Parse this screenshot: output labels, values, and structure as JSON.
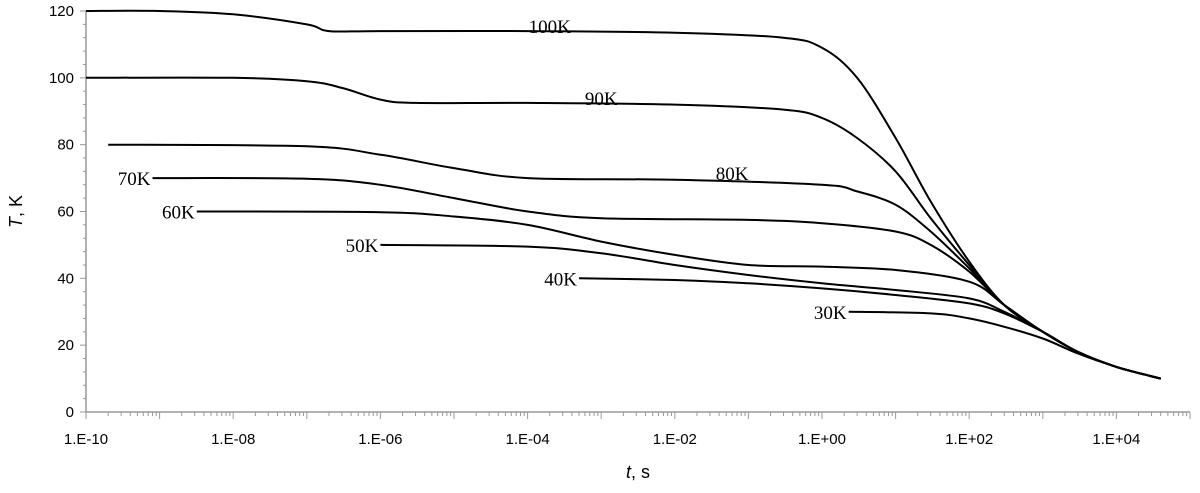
{
  "chart_data": {
    "type": "line",
    "title": "",
    "xlabel_var": "t",
    "xlabel_unit": ", s",
    "ylabel_var": "T",
    "ylabel_unit": ", K",
    "x_scale": "log",
    "xlim": [
      1e-10,
      100000.0
    ],
    "ylim": [
      0,
      120
    ],
    "grid": false,
    "legend": "none",
    "x_tick_labels": [
      {
        "value": 1e-10,
        "label": "1.E-10"
      },
      {
        "value": 1e-08,
        "label": "1.E-08"
      },
      {
        "value": 1e-06,
        "label": "1.E-06"
      },
      {
        "value": 0.0001,
        "label": "1.E-04"
      },
      {
        "value": 0.01,
        "label": "1.E-02"
      },
      {
        "value": 1,
        "label": "1.E+00"
      },
      {
        "value": 100,
        "label": "1.E+02"
      },
      {
        "value": 10000,
        "label": "1.E+04"
      }
    ],
    "y_tick_labels": [
      {
        "value": 0,
        "label": "0"
      },
      {
        "value": 20,
        "label": "20"
      },
      {
        "value": 40,
        "label": "40"
      },
      {
        "value": 60,
        "label": "60"
      },
      {
        "value": 80,
        "label": "80"
      },
      {
        "value": 100,
        "label": "100"
      },
      {
        "value": 120,
        "label": "120"
      }
    ],
    "series": [
      {
        "name": "100K",
        "label_at": [
          0.0002,
          115.5
        ],
        "label_anchor": "middle",
        "points": [
          [
            1e-10,
            120
          ],
          [
            1e-09,
            120
          ],
          [
            1e-08,
            119
          ],
          [
            1e-07,
            116
          ],
          [
            2e-07,
            114
          ],
          [
            1e-06,
            114
          ],
          [
            0.0001,
            114
          ],
          [
            0.01,
            113.5
          ],
          [
            0.3,
            112
          ],
          [
            1,
            109
          ],
          [
            3,
            100
          ],
          [
            10,
            82
          ],
          [
            30,
            63
          ],
          [
            100,
            45
          ],
          [
            300,
            32
          ],
          [
            1000,
            24
          ],
          [
            3000,
            18
          ],
          [
            10000,
            13.5
          ],
          [
            40000,
            10
          ]
        ]
      },
      {
        "name": "90K",
        "label_at": [
          0.001,
          94
        ],
        "label_anchor": "middle",
        "points": [
          [
            1e-10,
            100
          ],
          [
            1e-08,
            100
          ],
          [
            1e-07,
            99
          ],
          [
            3e-07,
            97
          ],
          [
            1e-06,
            93.5
          ],
          [
            3e-06,
            92.5
          ],
          [
            0.0001,
            92.5
          ],
          [
            0.01,
            92
          ],
          [
            0.3,
            90.5
          ],
          [
            1,
            88
          ],
          [
            3,
            82
          ],
          [
            10,
            72
          ],
          [
            30,
            58
          ],
          [
            100,
            44
          ],
          [
            300,
            32
          ],
          [
            1000,
            24
          ],
          [
            3000,
            18
          ],
          [
            10000,
            13.5
          ],
          [
            40000,
            10
          ]
        ]
      },
      {
        "name": "80K",
        "label_at": [
          0.06,
          71.5
        ],
        "label_anchor": "middle",
        "points": [
          [
            2e-10,
            80
          ],
          [
            1e-07,
            79.5
          ],
          [
            1e-06,
            77
          ],
          [
            1e-05,
            73
          ],
          [
            0.0001,
            70
          ],
          [
            0.01,
            69.5
          ],
          [
            1,
            68
          ],
          [
            3,
            66
          ],
          [
            10,
            62
          ],
          [
            30,
            54
          ],
          [
            100,
            43
          ],
          [
            300,
            32
          ],
          [
            1000,
            24
          ],
          [
            3000,
            18
          ],
          [
            10000,
            13.5
          ],
          [
            40000,
            10
          ]
        ]
      },
      {
        "name": "70K",
        "label_at": [
          8e-10,
          70
        ],
        "label_anchor": "end",
        "points": [
          [
            8e-10,
            70
          ],
          [
            1e-07,
            69.8
          ],
          [
            1e-06,
            68
          ],
          [
            1e-05,
            64
          ],
          [
            0.0001,
            60
          ],
          [
            0.001,
            58
          ],
          [
            0.1,
            57.5
          ],
          [
            1,
            56.5
          ],
          [
            10,
            54
          ],
          [
            30,
            50
          ],
          [
            100,
            42
          ],
          [
            300,
            32
          ],
          [
            1000,
            24
          ],
          [
            3000,
            18
          ],
          [
            10000,
            13.5
          ],
          [
            40000,
            10
          ]
        ]
      },
      {
        "name": "60K",
        "label_at": [
          3.2e-09,
          60
        ],
        "label_anchor": "end",
        "points": [
          [
            3.2e-09,
            60
          ],
          [
            1e-06,
            59.8
          ],
          [
            1e-05,
            58.5
          ],
          [
            0.0001,
            56
          ],
          [
            0.001,
            51
          ],
          [
            0.01,
            47
          ],
          [
            0.1,
            44
          ],
          [
            1,
            43.5
          ],
          [
            10,
            42.5
          ],
          [
            100,
            39
          ],
          [
            300,
            32
          ],
          [
            1000,
            24
          ],
          [
            3000,
            18
          ],
          [
            10000,
            13.5
          ],
          [
            40000,
            10
          ]
        ]
      },
      {
        "name": "50K",
        "label_at": [
          1e-06,
          50
        ],
        "label_anchor": "end",
        "points": [
          [
            1e-06,
            50
          ],
          [
            0.0001,
            49.5
          ],
          [
            0.001,
            47.5
          ],
          [
            0.01,
            44
          ],
          [
            0.1,
            41
          ],
          [
            1,
            38.5
          ],
          [
            10,
            36.5
          ],
          [
            100,
            34
          ],
          [
            300,
            30
          ],
          [
            1000,
            24
          ],
          [
            3000,
            18
          ],
          [
            10000,
            13.5
          ],
          [
            40000,
            10
          ]
        ]
      },
      {
        "name": "40K",
        "label_at": [
          0.0005,
          40
        ],
        "label_anchor": "end",
        "points": [
          [
            0.0005,
            40
          ],
          [
            0.01,
            39.5
          ],
          [
            0.1,
            38.5
          ],
          [
            1,
            37
          ],
          [
            10,
            35
          ],
          [
            100,
            32.5
          ],
          [
            300,
            29.5
          ],
          [
            1000,
            24
          ],
          [
            3000,
            18
          ],
          [
            10000,
            13.5
          ],
          [
            40000,
            10
          ]
        ]
      },
      {
        "name": "30K",
        "label_at": [
          2.3,
          30
        ],
        "label_anchor": "end",
        "points": [
          [
            2.3,
            30
          ],
          [
            30,
            29.5
          ],
          [
            100,
            28
          ],
          [
            300,
            25.5
          ],
          [
            1000,
            22
          ],
          [
            3000,
            17.5
          ],
          [
            10000,
            13.5
          ],
          [
            40000,
            10
          ]
        ]
      }
    ]
  }
}
